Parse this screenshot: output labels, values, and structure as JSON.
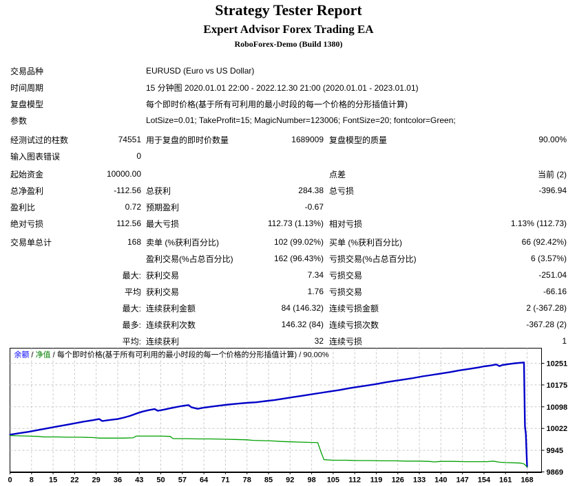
{
  "header": {
    "title": "Strategy Tester Report",
    "subtitle": "Expert Advisor Forex Trading EA",
    "server": "RoboForex-Demo (Build 1380)"
  },
  "report": {
    "rows": [
      {
        "wide": true,
        "c": [
          "交易品种",
          "",
          "EURUSD (Euro vs US Dollar)",
          "",
          "",
          ""
        ]
      },
      {
        "wide": true,
        "c": [
          "时间周期",
          "",
          "15 分钟图 2020.01.01 22:00 - 2022.12.30 21:00 (2020.01.01 - 2023.01.01)",
          "",
          "",
          ""
        ]
      },
      {
        "wide": true,
        "c": [
          "复盘模型",
          "",
          "每个即时价格(基于所有可利用的最小时段的每一个价格的分形插值计算)",
          "",
          "",
          ""
        ]
      },
      {
        "wide": true,
        "c": [
          "参数",
          "",
          "LotSize=0.01; TakeProfit=15; MagicNumber=123006; FontSize=20; fontcolor=Green;",
          "",
          "",
          ""
        ]
      },
      {
        "gap": 4,
        "c": [
          "经测试过的柱数",
          "74551",
          "用于复盘的即时价数量",
          "1689009",
          "复盘模型的质量",
          "90.00%"
        ]
      },
      {
        "c": [
          "输入图表错误",
          "0",
          "",
          "",
          "",
          ""
        ]
      },
      {
        "gap": 2,
        "c": [
          "起始资金",
          "10000.00",
          "",
          "",
          "点差",
          "当前 (2)"
        ]
      },
      {
        "c": [
          "总净盈利",
          "-112.56",
          "总获利",
          "284.38",
          "总亏损",
          "-396.94"
        ]
      },
      {
        "c": [
          "盈利比",
          "0.72",
          "预期盈利",
          "-0.67",
          "",
          ""
        ]
      },
      {
        "c": [
          "绝对亏损",
          "112.56",
          "最大亏损",
          "112.73 (1.13%)",
          "相对亏损",
          "1.13% (112.73)"
        ]
      },
      {
        "gap": 3,
        "c": [
          "交易单总计",
          "168",
          "卖单 (%获利百分比)",
          "102 (99.02%)",
          "买单 (%获利百分比)",
          "66 (92.42%)"
        ]
      },
      {
        "c": [
          "",
          "",
          "盈利交易(%占总百分比)",
          "162 (96.43%)",
          "亏损交易(%占总百分比)",
          "6 (3.57%)"
        ]
      },
      {
        "c": [
          "",
          "最大:",
          "获利交易",
          "7.34",
          "亏损交易",
          "-251.04"
        ]
      },
      {
        "c": [
          "",
          "平均",
          "获利交易",
          "1.76",
          "亏损交易",
          "-66.16"
        ]
      },
      {
        "c": [
          "",
          "最大:",
          "连续获利金额",
          "84 (146.32)",
          "连续亏损金额",
          "2 (-367.28)"
        ]
      },
      {
        "c": [
          "",
          "最多:",
          "连续获利次数",
          "146.32 (84)",
          "连续亏损次数",
          "-367.28 (2)"
        ]
      },
      {
        "c": [
          "",
          "平均:",
          "连续获利",
          "32",
          "连续亏损",
          "1"
        ]
      }
    ]
  },
  "chart_data": {
    "type": "line",
    "legend_parts": [
      {
        "text": "余额",
        "color": "#0000ff"
      },
      {
        "text": " / ",
        "color": "#000000"
      },
      {
        "text": "净值",
        "color": "#008000"
      },
      {
        "text": " / 每个即时价格(基于所有可利用的最小时段的每一个价格的分形插值计算) / 90.00%",
        "color": "#000000"
      }
    ],
    "x_ticks": [
      0,
      8,
      15,
      22,
      29,
      36,
      43,
      50,
      57,
      64,
      71,
      78,
      85,
      92,
      98,
      105,
      112,
      119,
      126,
      133,
      140,
      147,
      154,
      161,
      168
    ],
    "y_ticks": [
      10251,
      10175,
      10098,
      10022,
      9945,
      9869
    ],
    "xlim": [
      0,
      168
    ],
    "grid": true,
    "grid_color": "#c8c8c8",
    "border_color": "#000000",
    "series": [
      {
        "name": "余额",
        "color": "#0000c8",
        "width": 2.4,
        "points": [
          [
            0,
            10000
          ],
          [
            3,
            10005
          ],
          [
            6,
            10010
          ],
          [
            9,
            10016
          ],
          [
            12,
            10022
          ],
          [
            15,
            10028
          ],
          [
            18,
            10034
          ],
          [
            21,
            10040
          ],
          [
            24,
            10046
          ],
          [
            27,
            10051
          ],
          [
            29,
            10055
          ],
          [
            30,
            10048
          ],
          [
            32,
            10051
          ],
          [
            35,
            10055
          ],
          [
            37,
            10060
          ],
          [
            39,
            10066
          ],
          [
            41,
            10074
          ],
          [
            43,
            10081
          ],
          [
            45,
            10086
          ],
          [
            47,
            10090
          ],
          [
            48,
            10084
          ],
          [
            50,
            10088
          ],
          [
            52,
            10093
          ],
          [
            54,
            10097
          ],
          [
            56,
            10101
          ],
          [
            58,
            10104
          ],
          [
            59,
            10096
          ],
          [
            61,
            10091
          ],
          [
            63,
            10095
          ],
          [
            65,
            10098
          ],
          [
            68,
            10102
          ],
          [
            71,
            10106
          ],
          [
            74,
            10109
          ],
          [
            77,
            10112
          ],
          [
            80,
            10114
          ],
          [
            83,
            10118
          ],
          [
            86,
            10122
          ],
          [
            89,
            10127
          ],
          [
            92,
            10132
          ],
          [
            95,
            10137
          ],
          [
            98,
            10142
          ],
          [
            101,
            10147
          ],
          [
            104,
            10152
          ],
          [
            107,
            10157
          ],
          [
            110,
            10163
          ],
          [
            113,
            10168
          ],
          [
            116,
            10173
          ],
          [
            119,
            10178
          ],
          [
            122,
            10184
          ],
          [
            125,
            10189
          ],
          [
            128,
            10194
          ],
          [
            131,
            10199
          ],
          [
            134,
            10205
          ],
          [
            137,
            10210
          ],
          [
            140,
            10215
          ],
          [
            143,
            10220
          ],
          [
            146,
            10226
          ],
          [
            149,
            10231
          ],
          [
            152,
            10236
          ],
          [
            154,
            10240
          ],
          [
            156,
            10243
          ],
          [
            158,
            10247
          ],
          [
            159,
            10241
          ],
          [
            160,
            10245
          ],
          [
            162,
            10248
          ],
          [
            164,
            10251
          ],
          [
            166,
            10253
          ],
          [
            167,
            10254
          ],
          [
            167.3,
            10030
          ],
          [
            167.6,
            10003
          ],
          [
            168,
            9887
          ]
        ]
      },
      {
        "name": "净值",
        "color": "#00a000",
        "width": 1.3,
        "points": [
          [
            0,
            9997
          ],
          [
            3,
            9996
          ],
          [
            6,
            9995
          ],
          [
            9,
            9994
          ],
          [
            11,
            9992
          ],
          [
            15,
            9992
          ],
          [
            19,
            9991
          ],
          [
            23,
            9991
          ],
          [
            27,
            9990
          ],
          [
            29,
            9988
          ],
          [
            33,
            9988
          ],
          [
            37,
            9988
          ],
          [
            40,
            9989
          ],
          [
            41,
            9995
          ],
          [
            45,
            9995
          ],
          [
            49,
            9995
          ],
          [
            52,
            9994
          ],
          [
            53,
            9986
          ],
          [
            57,
            9986
          ],
          [
            61,
            9985
          ],
          [
            65,
            9985
          ],
          [
            69,
            9984
          ],
          [
            73,
            9983
          ],
          [
            77,
            9982
          ],
          [
            79,
            9980
          ],
          [
            82,
            9979
          ],
          [
            85,
            9978
          ],
          [
            88,
            9976
          ],
          [
            91,
            9975
          ],
          [
            94,
            9974
          ],
          [
            97,
            9973
          ],
          [
            100,
            9972
          ],
          [
            101,
            9940
          ],
          [
            102,
            9912
          ],
          [
            105,
            9910
          ],
          [
            109,
            9910
          ],
          [
            113,
            9909
          ],
          [
            117,
            9909
          ],
          [
            121,
            9908
          ],
          [
            125,
            9908
          ],
          [
            129,
            9907
          ],
          [
            133,
            9907
          ],
          [
            136,
            9906
          ],
          [
            138,
            9904
          ],
          [
            140,
            9906
          ],
          [
            144,
            9906
          ],
          [
            148,
            9905
          ],
          [
            152,
            9905
          ],
          [
            155,
            9905
          ],
          [
            157,
            9907
          ],
          [
            159,
            9903
          ],
          [
            161,
            9902
          ],
          [
            164,
            9901
          ],
          [
            166,
            9900
          ],
          [
            167,
            9897
          ],
          [
            168,
            9887
          ]
        ]
      }
    ]
  }
}
